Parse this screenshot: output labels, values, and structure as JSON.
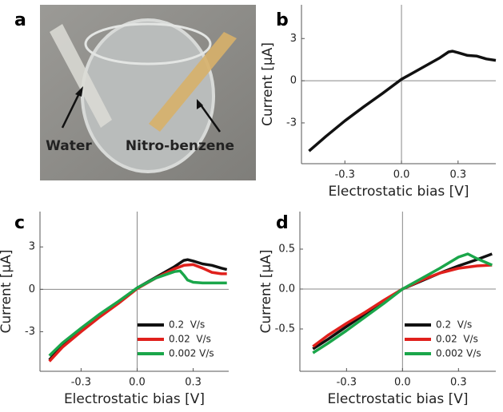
{
  "photo": {
    "panel_label": "a",
    "annotations": [
      "Water",
      "Nitro-benzene"
    ]
  },
  "chart_data": [
    {
      "type": "line",
      "panel_label": "b",
      "x_label": "Electrostatic bias [V]",
      "y_label": "Current [μA]",
      "xlim": [
        -0.53,
        0.5
      ],
      "ylim": [
        -5.9,
        5.4
      ],
      "xticks": [
        -0.3,
        {
          "value": 0,
          "label": "0.0"
        },
        0.3
      ],
      "yticks": [
        3,
        0,
        -3
      ],
      "zero_lines": true,
      "series": [
        {
          "color": "#111111",
          "x": [
            -0.49,
            -0.4,
            -0.3,
            -0.2,
            -0.1,
            0,
            0.1,
            0.2,
            0.25,
            0.27,
            0.3,
            0.35,
            0.4,
            0.45,
            0.5
          ],
          "values": [
            -5.0,
            -3.95,
            -2.85,
            -1.85,
            -0.9,
            0.1,
            0.85,
            1.6,
            2.05,
            2.1,
            2.0,
            1.8,
            1.75,
            1.55,
            1.45
          ]
        }
      ]
    },
    {
      "type": "line",
      "panel_label": "c",
      "x_label": "Electrostatic bias [V]",
      "y_label": "Current [μA]",
      "xlim": [
        -0.52,
        0.49
      ],
      "ylim": [
        -5.8,
        5.5
      ],
      "xticks": [
        -0.3,
        {
          "value": 0,
          "label": "0.0"
        },
        0.3
      ],
      "yticks": [
        3,
        0,
        -3
      ],
      "zero_lines": true,
      "legend": "lower-right",
      "series": [
        {
          "name": "0.2  V/s",
          "color": "#111111",
          "x": [
            -0.47,
            -0.4,
            -0.3,
            -0.2,
            -0.1,
            0,
            0.1,
            0.2,
            0.25,
            0.27,
            0.3,
            0.35,
            0.4,
            0.45,
            0.48
          ],
          "values": [
            -5.0,
            -4.0,
            -2.9,
            -1.9,
            -0.95,
            0.1,
            0.85,
            1.6,
            2.05,
            2.1,
            2.0,
            1.8,
            1.7,
            1.5,
            1.4
          ]
        },
        {
          "name": "0.02  V/s",
          "color": "#e0201c",
          "x": [
            -0.47,
            -0.4,
            -0.3,
            -0.2,
            -0.1,
            0,
            0.1,
            0.2,
            0.25,
            0.3,
            0.35,
            0.4,
            0.45,
            0.48
          ],
          "values": [
            -5.1,
            -4.1,
            -3.0,
            -1.95,
            -1.0,
            0.05,
            0.8,
            1.45,
            1.7,
            1.75,
            1.5,
            1.2,
            1.1,
            1.1
          ]
        },
        {
          "name": "0.002 V/s",
          "color": "#1aa64a",
          "x": [
            -0.47,
            -0.4,
            -0.3,
            -0.2,
            -0.1,
            0,
            0.1,
            0.2,
            0.23,
            0.25,
            0.27,
            0.3,
            0.35,
            0.4,
            0.48
          ],
          "values": [
            -4.7,
            -3.8,
            -2.75,
            -1.75,
            -0.85,
            0.1,
            0.8,
            1.25,
            1.3,
            1.0,
            0.65,
            0.5,
            0.45,
            0.45,
            0.45
          ]
        }
      ]
    },
    {
      "type": "line",
      "panel_label": "d",
      "x_label": "Electrostatic bias [V]",
      "y_label": "Current [μA]",
      "xlim": [
        -0.55,
        0.5
      ],
      "ylim": [
        -1.03,
        0.97
      ],
      "xticks": [
        -0.3,
        {
          "value": 0,
          "label": "0.0"
        },
        0.3
      ],
      "yticks": [
        0.5,
        {
          "value": 0,
          "label": "0.0"
        },
        -0.5
      ],
      "zero_lines": true,
      "legend": "lower-right",
      "series": [
        {
          "name": "0.2  V/s",
          "color": "#111111",
          "x": [
            -0.48,
            -0.4,
            -0.3,
            -0.2,
            -0.1,
            0,
            0.1,
            0.2,
            0.3,
            0.4,
            0.48
          ],
          "values": [
            -0.75,
            -0.63,
            -0.47,
            -0.31,
            -0.15,
            0.0,
            0.1,
            0.2,
            0.29,
            0.37,
            0.44
          ]
        },
        {
          "name": "0.02  V/s",
          "color": "#e0201c",
          "x": [
            -0.48,
            -0.4,
            -0.3,
            -0.2,
            -0.1,
            0,
            0.1,
            0.2,
            0.3,
            0.4,
            0.48
          ],
          "values": [
            -0.72,
            -0.58,
            -0.43,
            -0.29,
            -0.14,
            0.0,
            0.11,
            0.2,
            0.26,
            0.29,
            0.3
          ]
        },
        {
          "name": "0.002 V/s",
          "color": "#1aa64a",
          "x": [
            -0.48,
            -0.4,
            -0.3,
            -0.2,
            -0.1,
            0,
            0.1,
            0.2,
            0.3,
            0.35,
            0.4,
            0.48
          ],
          "values": [
            -0.8,
            -0.68,
            -0.52,
            -0.35,
            -0.18,
            0.0,
            0.13,
            0.26,
            0.4,
            0.44,
            0.38,
            0.3
          ]
        }
      ]
    }
  ]
}
